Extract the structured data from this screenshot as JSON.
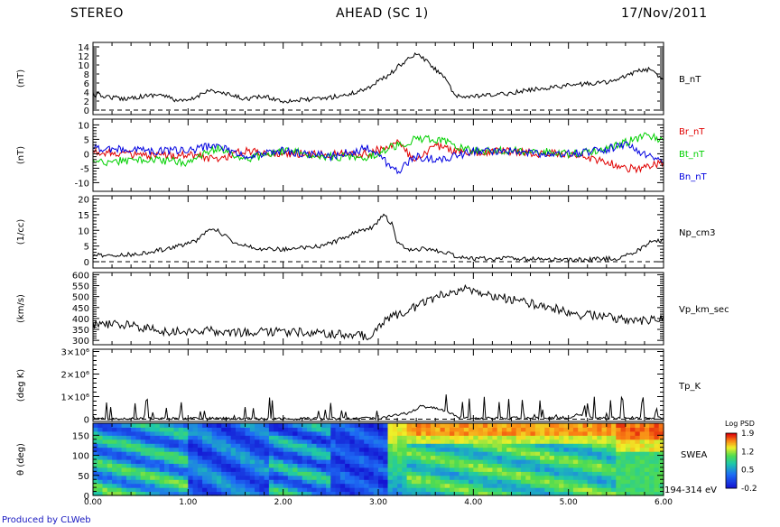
{
  "header": {
    "left": "STEREO",
    "center": "AHEAD (SC 1)",
    "right": "17/Nov/2011"
  },
  "footer": {
    "credit": "Produced by CLWeb"
  },
  "chart_data": {
    "type": "line",
    "x_axis": {
      "xlim": [
        0,
        6
      ],
      "ticks": [
        "0.00",
        "1.00",
        "2.00",
        "3.00",
        "4.00",
        "5.00",
        "6.00"
      ],
      "range_label": "194-314 eV"
    },
    "panels": [
      {
        "id": "b",
        "ylabel": "(nT)",
        "ylim": [
          -1,
          15
        ],
        "yticks": [
          0,
          2,
          4,
          6,
          8,
          10,
          12,
          14
        ],
        "zero_line": true,
        "series": [
          {
            "name": "B_nT",
            "color": "#000000",
            "x": [
              0.0,
              0.3,
              0.7,
              0.9,
              1.0,
              1.1,
              1.2,
              1.4,
              1.6,
              1.8,
              2.0,
              2.4,
              2.7,
              2.9,
              3.0,
              3.1,
              3.2,
              3.3,
              3.4,
              3.5,
              3.6,
              3.7,
              3.8,
              4.0,
              4.3,
              4.6,
              5.0,
              5.3,
              5.5,
              5.7,
              5.85,
              6.0
            ],
            "values": [
              3.5,
              2.5,
              3.5,
              2.0,
              2.0,
              3.0,
              4.5,
              3.5,
              2.5,
              3.0,
              2.0,
              2.5,
              3.5,
              5.0,
              6.5,
              7.5,
              9.5,
              11.0,
              12.5,
              11.0,
              9.0,
              7.5,
              3.0,
              3.0,
              3.5,
              4.5,
              5.5,
              6.0,
              6.5,
              8.5,
              9.0,
              7.0
            ]
          }
        ]
      },
      {
        "id": "bc",
        "ylabel": "(nT)",
        "ylim": [
          -13,
          12
        ],
        "yticks": [
          -10,
          -5,
          0,
          5,
          10
        ],
        "zero_line": false,
        "series": [
          {
            "name": "Br_nT",
            "color": "#e00000",
            "x": [
              0.0,
              0.6,
              1.0,
              1.3,
              1.6,
              2.0,
              2.5,
              2.9,
              3.2,
              3.4,
              3.6,
              3.8,
              4.0,
              4.3,
              4.7,
              5.0,
              5.3,
              5.6,
              5.8,
              6.0
            ],
            "values": [
              1,
              -1,
              0,
              -2,
              1,
              0,
              0,
              0,
              4,
              -3,
              3,
              1,
              0,
              1,
              0,
              0,
              -2,
              -5,
              -5,
              -3
            ]
          },
          {
            "name": "Bt_nT",
            "color": "#00d000",
            "x": [
              0.0,
              0.6,
              1.0,
              1.3,
              1.6,
              2.0,
              2.5,
              2.9,
              3.2,
              3.4,
              3.6,
              3.8,
              4.0,
              4.3,
              4.7,
              5.0,
              5.3,
              5.6,
              5.8,
              6.0
            ],
            "values": [
              -3,
              -2,
              -3,
              2,
              -2,
              1,
              -1,
              -1,
              3,
              5,
              5,
              3,
              1,
              1,
              1,
              0,
              1,
              4,
              6,
              5
            ]
          },
          {
            "name": "Bn_nT",
            "color": "#0000e0",
            "x": [
              0.0,
              0.6,
              1.0,
              1.3,
              1.6,
              2.0,
              2.5,
              2.9,
              3.2,
              3.4,
              3.6,
              3.8,
              4.0,
              4.3,
              4.7,
              5.0,
              5.3,
              5.6,
              5.8,
              6.0
            ],
            "values": [
              2,
              1,
              1,
              3,
              -1,
              1,
              -1,
              2,
              -6,
              -1,
              -2,
              -1,
              1,
              1,
              0,
              0,
              1,
              3,
              0,
              -3
            ]
          }
        ]
      },
      {
        "id": "np",
        "ylabel": "(1/cc)",
        "ylim": [
          -2,
          21
        ],
        "yticks": [
          0,
          5,
          10,
          15,
          20
        ],
        "zero_line": true,
        "series": [
          {
            "name": "Np_cm3",
            "color": "#000000",
            "x": [
              0.0,
              0.3,
              0.6,
              0.9,
              1.1,
              1.25,
              1.35,
              1.5,
              1.8,
              2.1,
              2.4,
              2.6,
              2.8,
              2.95,
              3.05,
              3.15,
              3.2,
              3.3,
              3.5,
              3.7,
              3.85,
              4.0,
              4.5,
              5.0,
              5.5,
              5.7,
              5.85,
              6.0
            ],
            "values": [
              2,
              2,
              3,
              5,
              7,
              11,
              9,
              6,
              4,
              4,
              5,
              7,
              10,
              11,
              15,
              12,
              6,
              4,
              4,
              3,
              1.5,
              1,
              1,
              0.5,
              1,
              3,
              6,
              7
            ]
          }
        ]
      },
      {
        "id": "vp",
        "ylabel": "(km/s)",
        "ylim": [
          280,
          610
        ],
        "yticks": [
          300,
          350,
          400,
          450,
          500,
          550,
          600
        ],
        "zero_line": false,
        "series": [
          {
            "name": "Vp_km_sec",
            "color": "#000000",
            "x": [
              0.0,
              0.3,
              0.5,
              0.8,
              1.2,
              1.5,
              2.0,
              2.5,
              2.9,
              3.1,
              3.3,
              3.5,
              3.7,
              3.9,
              4.1,
              4.5,
              4.8,
              5.0,
              5.1,
              5.2,
              5.5,
              5.8,
              6.0
            ],
            "values": [
              370,
              375,
              360,
              340,
              345,
              335,
              340,
              330,
              320,
              400,
              430,
              480,
              510,
              540,
              510,
              480,
              450,
              430,
              410,
              420,
              400,
              390,
              400
            ]
          }
        ]
      },
      {
        "id": "tp",
        "ylabel": "(deg K)",
        "ylim": [
          -100000,
          3100000
        ],
        "yticks": [
          0,
          1000000,
          2000000,
          3000000
        ],
        "ytick_labels": [
          "0",
          "1×10⁶",
          "2×10⁶",
          "3×10⁶"
        ],
        "zero_line": true,
        "series": [
          {
            "name": "Tp_K",
            "color": "#000000",
            "x": [
              0.0,
              1.0,
              2.0,
              3.0,
              3.35,
              3.45,
              3.55,
              3.65,
              3.75,
              3.85,
              4.0,
              5.0,
              5.1,
              5.2,
              6.0
            ],
            "values": [
              20000,
              30000,
              20000,
              30000,
              300000,
              600000,
              500000,
              450000,
              300000,
              100000,
              40000,
              60000,
              200000,
              80000,
              40000
            ]
          }
        ]
      },
      {
        "id": "swea",
        "ylabel": "θ (deg)",
        "ylim": [
          0,
          180
        ],
        "yticks": [
          0,
          50,
          100,
          150
        ],
        "kind": "heatmap",
        "label": "SWEA",
        "colorbar": {
          "title": "Log PSD",
          "ticks": [
            "1.9",
            "1.2",
            "0.5",
            "-0.2"
          ],
          "min": -0.2,
          "max": 1.9
        }
      }
    ]
  }
}
